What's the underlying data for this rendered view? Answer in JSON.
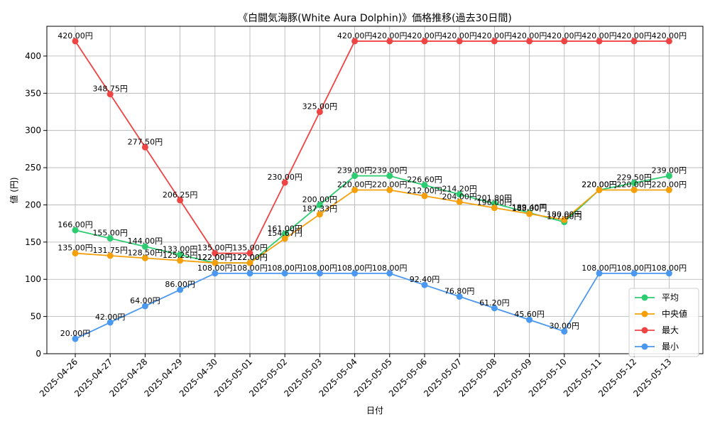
{
  "chart_data": {
    "type": "line",
    "title": "《白闘気海豚(White Aura Dolphin)》価格推移(過去30日間)",
    "xlabel": "日付",
    "ylabel": "値 (円)",
    "ylim": [
      0,
      440
    ],
    "yticks": [
      0,
      50,
      100,
      150,
      200,
      250,
      300,
      350,
      400
    ],
    "grid": true,
    "legend_position": "lower-right",
    "value_suffix": "円",
    "categories": [
      "2025-04-26",
      "2025-04-27",
      "2025-04-28",
      "2025-04-29",
      "2025-04-30",
      "2025-05-01",
      "2025-05-02",
      "2025-05-03",
      "2025-05-04",
      "2025-05-05",
      "2025-05-06",
      "2025-05-07",
      "2025-05-08",
      "2025-05-09",
      "2025-05-10",
      "2025-05-11",
      "2025-05-12",
      "2025-05-13"
    ],
    "series": [
      {
        "name": "平均",
        "color": "#2ecc71",
        "values": [
          166.0,
          155.0,
          144.0,
          133.0,
          122.0,
          122.0,
          161.0,
          200.0,
          239.0,
          239.0,
          226.6,
          214.2,
          201.8,
          189.4,
          177.0,
          220.0,
          229.5,
          239.0
        ]
      },
      {
        "name": "中央値",
        "color": "#f5a00a",
        "values": [
          135.0,
          131.75,
          128.5,
          125.25,
          122.0,
          122.0,
          154.67,
          187.33,
          220.0,
          220.0,
          212.0,
          204.0,
          196.0,
          188.0,
          180.0,
          220.0,
          220.0,
          220.0
        ]
      },
      {
        "name": "最大",
        "color": "#ef4444",
        "values": [
          420.0,
          348.75,
          277.5,
          206.25,
          135.0,
          135.0,
          230.0,
          325.0,
          420.0,
          420.0,
          420.0,
          420.0,
          420.0,
          420.0,
          420.0,
          420.0,
          420.0,
          420.0
        ]
      },
      {
        "name": "最小",
        "color": "#4a98f0",
        "values": [
          20.0,
          42.0,
          64.0,
          86.0,
          108.0,
          108.0,
          108.0,
          108.0,
          108.0,
          108.0,
          92.4,
          76.8,
          61.2,
          45.6,
          30.0,
          108.0,
          108.0,
          108.0
        ]
      }
    ]
  }
}
